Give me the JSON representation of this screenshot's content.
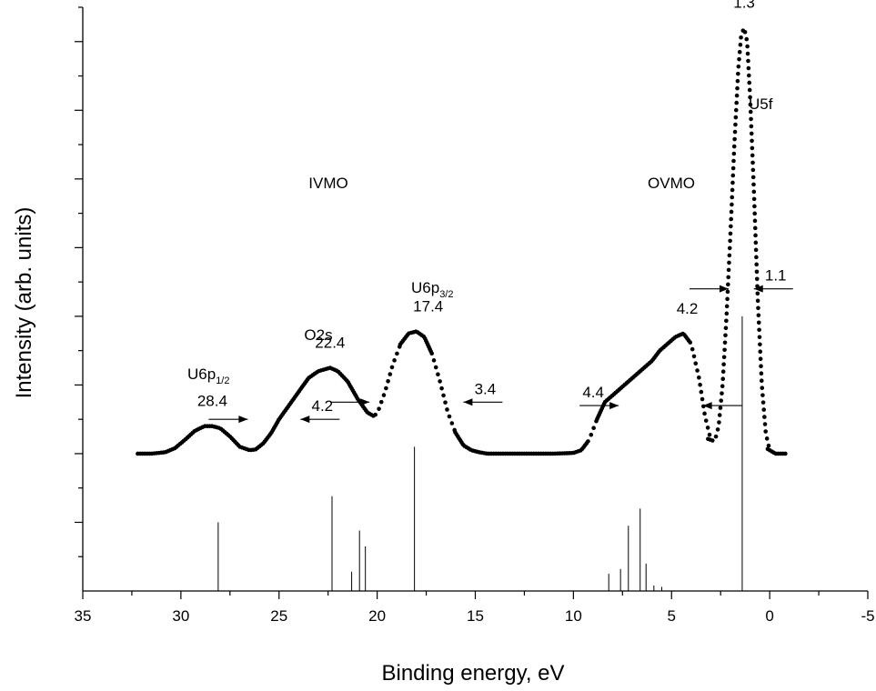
{
  "chart_data": {
    "type": "scatter",
    "title": "",
    "xlabel": "Binding energy, eV",
    "ylabel": "Intensity (arb. units)",
    "xlim": [
      35,
      -5
    ],
    "ylim": [
      0,
      8.5
    ],
    "x_reversed": true,
    "x_ticks": [
      35,
      30,
      25,
      20,
      15,
      10,
      5,
      0,
      -5
    ],
    "x_tick_labels": [
      "35",
      "30",
      "25",
      "20",
      "15",
      "10",
      "5",
      "0",
      "-5"
    ],
    "y_tick_labels_shown": false,
    "grid": false,
    "baseline": 2.0,
    "series": [
      {
        "style": "dots",
        "x": [
          32.2,
          31.5,
          30.8,
          30.3,
          29.8,
          29.3,
          28.8,
          28.4,
          28.0,
          27.5,
          27.0,
          26.5,
          26.2,
          25.8,
          25.4,
          25.0,
          24.5,
          24.0,
          23.5,
          23.0,
          22.4,
          22.0,
          21.5,
          21.0,
          20.5,
          20.2,
          20.0,
          19.6,
          19.2,
          18.8,
          18.4,
          18.0,
          17.6,
          17.2,
          16.8,
          16.4,
          16.0,
          15.6,
          15.2,
          14.8,
          14.4,
          14.0,
          13.0,
          12.0,
          11.0,
          10.0,
          9.6,
          9.2,
          8.8,
          8.4,
          8.0,
          7.6,
          7.2,
          6.8,
          6.4,
          6.0,
          5.6,
          5.2,
          4.8,
          4.4,
          4.0,
          3.6,
          3.3,
          3.0,
          2.8,
          2.6,
          2.4,
          2.2,
          2.0,
          1.8,
          1.6,
          1.45,
          1.3,
          1.15,
          1.0,
          0.8,
          0.6,
          0.4,
          0.2,
          0.0,
          -0.3,
          -0.6,
          -0.8
        ],
        "y": [
          2.0,
          2.0,
          2.02,
          2.08,
          2.2,
          2.33,
          2.4,
          2.4,
          2.37,
          2.25,
          2.1,
          2.05,
          2.06,
          2.15,
          2.3,
          2.5,
          2.7,
          2.9,
          3.1,
          3.2,
          3.25,
          3.2,
          3.05,
          2.8,
          2.6,
          2.55,
          2.58,
          2.9,
          3.3,
          3.6,
          3.75,
          3.78,
          3.7,
          3.45,
          3.05,
          2.6,
          2.3,
          2.12,
          2.05,
          2.02,
          2.0,
          2.0,
          2.0,
          2.0,
          2.0,
          2.01,
          2.05,
          2.2,
          2.5,
          2.75,
          2.85,
          2.95,
          3.05,
          3.15,
          3.25,
          3.35,
          3.5,
          3.6,
          3.7,
          3.75,
          3.6,
          3.1,
          2.55,
          2.2,
          2.18,
          2.4,
          3.0,
          4.0,
          5.2,
          6.5,
          7.6,
          8.1,
          8.2,
          8.0,
          7.2,
          5.8,
          4.2,
          3.0,
          2.3,
          2.05,
          2.0,
          2.0,
          2.0
        ]
      },
      {
        "style": "sticks",
        "x": [
          28.1,
          22.3,
          21.3,
          20.9,
          20.6,
          18.1,
          8.2,
          7.6,
          7.2,
          6.6,
          6.3,
          5.9,
          5.5,
          1.4
        ],
        "y": [
          1.0,
          1.38,
          0.28,
          0.88,
          0.65,
          2.1,
          0.25,
          0.32,
          0.95,
          1.2,
          0.4,
          0.08,
          0.06,
          4.0
        ]
      }
    ],
    "peak_labels": [
      {
        "text": "28.4",
        "x": 28.4,
        "y": 2.4
      },
      {
        "text": "22.4",
        "x": 22.4,
        "y": 3.25
      },
      {
        "text": "17.4",
        "x": 17.4,
        "y": 3.78
      },
      {
        "text": "4.2",
        "x": 4.2,
        "y": 3.75
      },
      {
        "text": "1.3",
        "x": 1.3,
        "y": 8.2
      }
    ],
    "width_labels": [
      {
        "text": "4.2",
        "x_left": 26.5,
        "x_right": 24.0,
        "y": 2.5
      },
      {
        "text": "3.4",
        "x_left": 20.3,
        "x_right": 15.7,
        "y": 2.75
      },
      {
        "text": "4.4",
        "x_left": 7.6,
        "x_right": 3.5,
        "y": 2.7
      },
      {
        "text": "1.1",
        "x_left": 2.0,
        "x_right": 0.9,
        "y": 4.4
      }
    ],
    "annotations": [
      {
        "text": "IVMO"
      },
      {
        "text": "OVMO"
      },
      {
        "text": "O2s"
      },
      {
        "text": "U5f"
      },
      {
        "text": "U6p",
        "subscript": "1/2"
      },
      {
        "text": "U6p",
        "subscript": "3/2"
      }
    ]
  }
}
